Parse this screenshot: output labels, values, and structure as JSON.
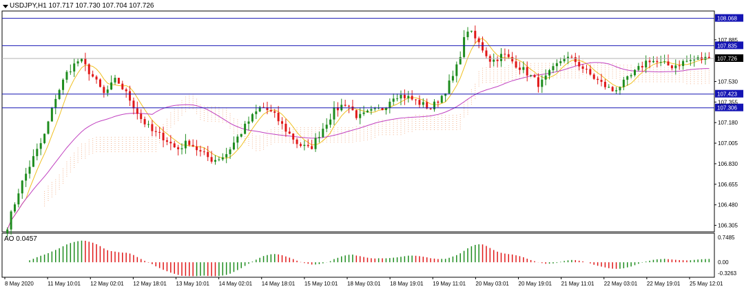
{
  "header": {
    "symbol": "USDJPY,H1",
    "ohlc": "107.717 107.730 107.704 107.726"
  },
  "oscillator": {
    "label": "AO 0.0457",
    "axis_ticks": [
      "0.7485",
      "0.00",
      "-0.3263"
    ]
  },
  "colors": {
    "bull": "#1e8c1e",
    "bear": "#e01818",
    "level_line": "#1414b4",
    "level_badge": "#1414b4",
    "current_price_badge": "#000000",
    "fast_ma": "#f0c020",
    "slow_ma": "#c040c0",
    "cloud": "#f0a070"
  },
  "chart_data": [
    {
      "type": "candlestick",
      "symbol": "USDJPY",
      "timeframe": "H1",
      "y_range": [
        106.25,
        108.13
      ],
      "y_ticks": [
        "108.068",
        "107.885",
        "107.835",
        "107.726",
        "107.530",
        "107.423",
        "107.355",
        "107.306",
        "107.180",
        "107.005",
        "106.830",
        "106.655",
        "106.480",
        "106.305"
      ],
      "x_ticks": [
        "8 May 2020",
        "11 May 10:01",
        "12 May 02:01",
        "12 May 18:01",
        "13 May 10:01",
        "14 May 02:01",
        "14 May 18:01",
        "15 May 10:01",
        "18 May 03:01",
        "18 May 19:01",
        "19 May 11:01",
        "20 May 03:01",
        "20 May 19:01",
        "21 May 11:01",
        "22 May 03:01",
        "22 May 19:01",
        "25 May 12:01"
      ],
      "levels": [
        {
          "price": 108.068,
          "label": "108.068"
        },
        {
          "price": 107.835,
          "label": "107.835"
        },
        {
          "price": 107.423,
          "label": "107.423"
        },
        {
          "price": 107.306,
          "label": "107.306"
        }
      ],
      "current_price": {
        "price": 107.726,
        "label": "107.726"
      },
      "price_path": [
        106.3,
        106.62,
        106.85,
        107.05,
        107.4,
        107.62,
        107.72,
        107.58,
        107.42,
        107.55,
        107.4,
        107.22,
        107.1,
        107.05,
        106.95,
        107.02,
        106.92,
        106.86,
        106.9,
        107.05,
        107.2,
        107.32,
        107.25,
        107.12,
        107.0,
        106.95,
        107.12,
        107.28,
        107.35,
        107.22,
        107.27,
        107.3,
        107.42,
        107.4,
        107.35,
        107.3,
        107.42,
        107.6,
        107.98,
        107.85,
        107.7,
        107.76,
        107.68,
        107.6,
        107.5,
        107.62,
        107.74,
        107.7,
        107.6,
        107.52,
        107.45,
        107.52,
        107.62,
        107.72,
        107.68,
        107.66,
        107.7,
        107.72,
        107.726
      ]
    },
    {
      "type": "histogram",
      "name": "AO",
      "value": 0.0457,
      "y_range": [
        -0.3263,
        0.7485
      ]
    }
  ]
}
